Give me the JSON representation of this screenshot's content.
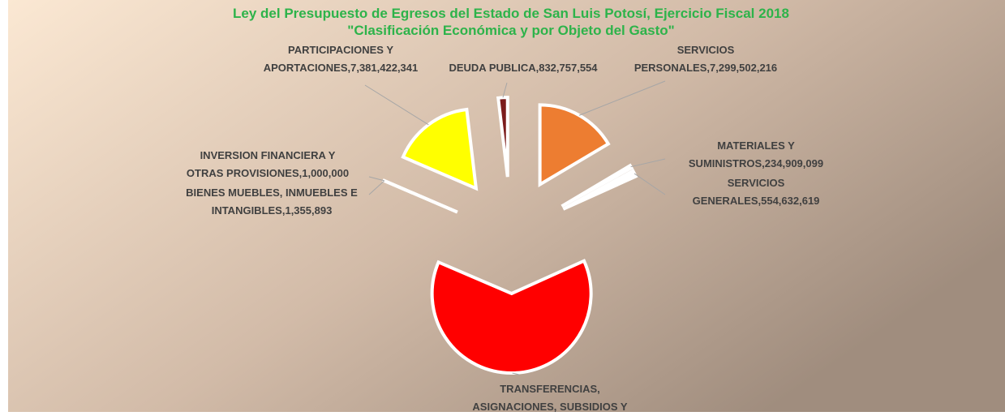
{
  "chart_data": {
    "type": "pie",
    "title": [
      "Ley del Presupuesto de Egresos del Estado de San Luis Potosí, Ejercicio Fiscal 2018",
      "\"Clasificación Económica y por Objeto del Gasto\""
    ],
    "series": [
      {
        "labels": [
          [
            "SERVICIOS",
            "PERSONALES,7,299,502,216"
          ],
          [
            "MATERIALES Y",
            "SUMINISTROS,234,909,099"
          ],
          [
            "SERVICIOS",
            "GENERALES,554,632,619"
          ],
          [
            "TRANSFERENCIAS,",
            "ASIGNACIONES, SUBSIDIOS Y"
          ],
          [
            "BIENES MUEBLES, INMUEBLES E",
            "INTANGIBLES,1,355,893"
          ],
          [
            "INVERSION FINANCIERA Y",
            "OTRAS PROVISIONES,1,000,000"
          ],
          [
            "PARTICIPACIONES Y",
            "APORTACIONES,7,381,422,341"
          ],
          [
            "DEUDA PUBLICA,832,757,554"
          ]
        ],
        "values": [
          7299502216,
          234909099,
          554632619,
          28000000000,
          1355893,
          1000000,
          7381422341,
          832757554
        ],
        "colors": [
          "#ed7d31",
          "#ffffff",
          "#ffffff",
          "#ff0000",
          "#ffffff",
          "#ffffff",
          "#ffff00",
          "#7b1c1c"
        ]
      }
    ]
  }
}
